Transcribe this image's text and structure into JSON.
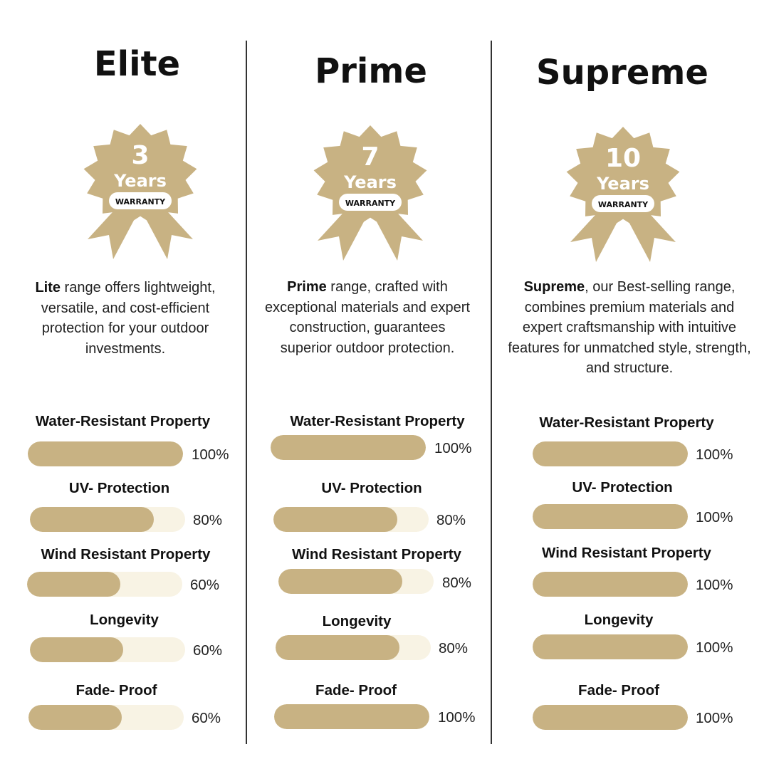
{
  "colors": {
    "accent": "#c8b283",
    "track": "#f8f3e4",
    "text": "#111111"
  },
  "columns": [
    {
      "title": "Elite",
      "badge": {
        "number": "3",
        "unit": "Years",
        "tag": "WARRANTY"
      },
      "description": {
        "lead": "Lite",
        "body": " range offers lightweight, versatile, and cost-efficient protection for your outdoor investments."
      },
      "metrics": [
        {
          "label": "Water-Resistant Property",
          "value": 100,
          "display": "100%"
        },
        {
          "label": "UV- Protection",
          "value": 80,
          "display": "80%"
        },
        {
          "label": "Wind Resistant Property",
          "value": 60,
          "display": "60%"
        },
        {
          "label": "Longevity",
          "value": 60,
          "display": "60%"
        },
        {
          "label": "Fade- Proof",
          "value": 60,
          "display": "60%"
        }
      ]
    },
    {
      "title": "Prime",
      "badge": {
        "number": "7",
        "unit": "Years",
        "tag": "WARRANTY"
      },
      "description": {
        "lead": "Prime",
        "body": " range, crafted with exceptional materials and expert construction, guarantees superior outdoor protection."
      },
      "metrics": [
        {
          "label": "Water-Resistant Property",
          "value": 100,
          "display": "100%"
        },
        {
          "label": "UV- Protection",
          "value": 80,
          "display": "80%"
        },
        {
          "label": "Wind Resistant Property",
          "value": 80,
          "display": "80%"
        },
        {
          "label": "Longevity",
          "value": 80,
          "display": "80%"
        },
        {
          "label": "Fade- Proof",
          "value": 100,
          "display": "100%"
        }
      ]
    },
    {
      "title": "Supreme",
      "badge": {
        "number": "10",
        "unit": "Years",
        "tag": "WARRANTY"
      },
      "description": {
        "lead": "Supreme",
        "body": ", our Best-selling range, combines premium materials and expert craftsmanship with intuitive features for unmatched style, strength, and structure."
      },
      "metrics": [
        {
          "label": "Water-Resistant Property",
          "value": 100,
          "display": "100%"
        },
        {
          "label": "UV- Protection",
          "value": 100,
          "display": "100%"
        },
        {
          "label": "Wind Resistant Property",
          "value": 100,
          "display": "100%"
        },
        {
          "label": "Longevity",
          "value": 100,
          "display": "100%"
        },
        {
          "label": "Fade- Proof",
          "value": 100,
          "display": "100%"
        }
      ]
    }
  ]
}
